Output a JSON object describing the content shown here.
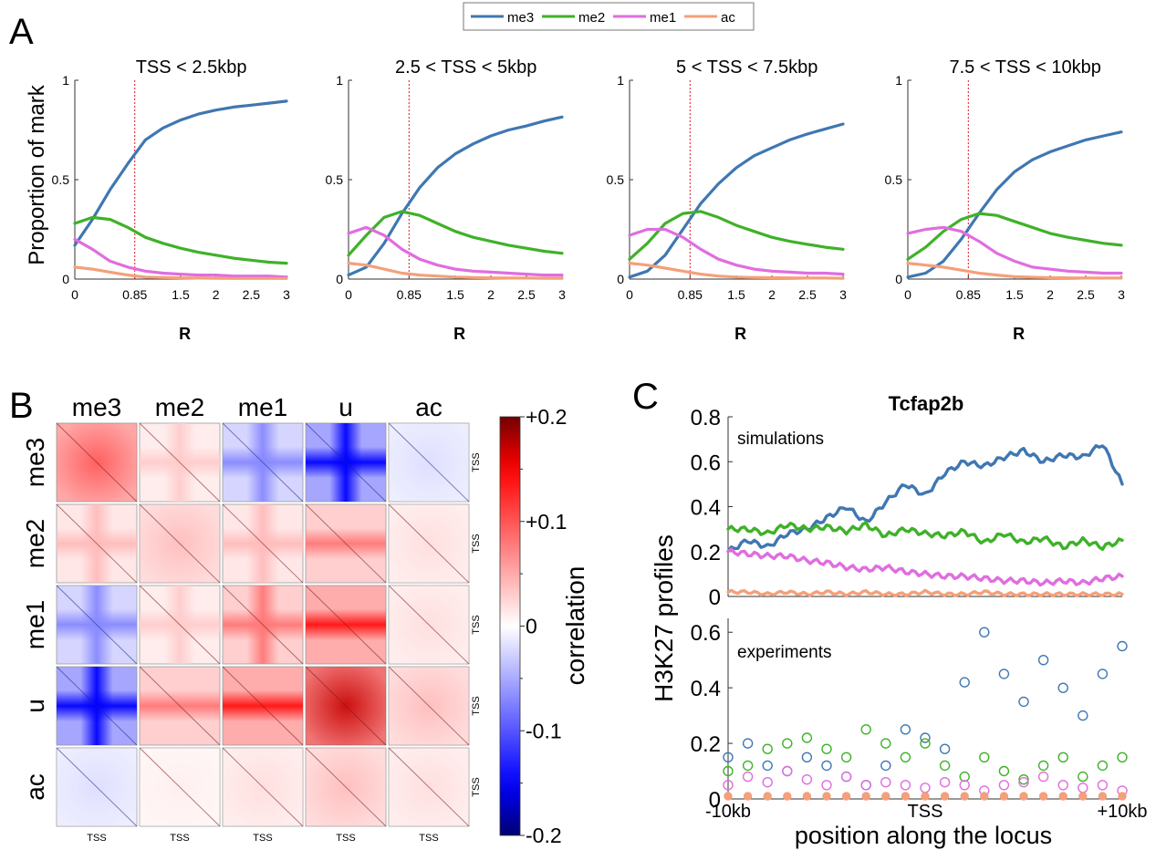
{
  "panels": {
    "a": {
      "label": "A",
      "ylabel": "Proportion of mark",
      "xlabel": "R"
    },
    "b": {
      "label": "B"
    },
    "c": {
      "label": "C",
      "title": "Tcfap2b",
      "ylabel": "H3K27 profiles",
      "xlabel": "position along the locus"
    }
  },
  "legend": [
    {
      "name": "me3",
      "color": "#3f77b2"
    },
    {
      "name": "me2",
      "color": "#3fb129"
    },
    {
      "name": "me1",
      "color": "#e06de0"
    },
    {
      "name": "ac",
      "color": "#f4a07a"
    }
  ],
  "chart_data": [
    {
      "type": "line",
      "title": "TSS < 2.5kbp",
      "xlabel": "R",
      "ylabel": "Proportion of mark",
      "xlim": [
        0,
        3
      ],
      "ylim": [
        0,
        1
      ],
      "xticks": [
        {
          "v": 0,
          "label": "0"
        },
        {
          "v": 0.85,
          "label": "0.85"
        },
        {
          "v": 1.5,
          "label": "1.5"
        },
        {
          "v": 2,
          "label": "2"
        },
        {
          "v": 2.5,
          "label": "2.5"
        },
        {
          "v": 3,
          "label": "3"
        }
      ],
      "yticks": [
        {
          "v": 0,
          "label": "0"
        },
        {
          "v": 0.5,
          "label": "0.5"
        },
        {
          "v": 1,
          "label": "1"
        }
      ],
      "vline": 0.85,
      "x": [
        0,
        0.25,
        0.5,
        0.75,
        1,
        1.25,
        1.5,
        1.75,
        2,
        2.25,
        2.5,
        2.75,
        3
      ],
      "series": [
        {
          "name": "me3",
          "color": "#3f77b2",
          "values": [
            0.17,
            0.3,
            0.45,
            0.58,
            0.7,
            0.76,
            0.8,
            0.83,
            0.85,
            0.865,
            0.875,
            0.885,
            0.895
          ]
        },
        {
          "name": "me2",
          "color": "#3fb129",
          "values": [
            0.28,
            0.31,
            0.3,
            0.26,
            0.21,
            0.18,
            0.155,
            0.135,
            0.12,
            0.105,
            0.095,
            0.085,
            0.08
          ]
        },
        {
          "name": "me1",
          "color": "#e06de0",
          "values": [
            0.2,
            0.15,
            0.09,
            0.06,
            0.04,
            0.03,
            0.025,
            0.02,
            0.02,
            0.015,
            0.015,
            0.015,
            0.01
          ]
        },
        {
          "name": "ac",
          "color": "#f4a07a",
          "values": [
            0.06,
            0.05,
            0.035,
            0.02,
            0.01,
            0.008,
            0.006,
            0.005,
            0.004,
            0.003,
            0.003,
            0.003,
            0.003
          ]
        }
      ]
    },
    {
      "type": "line",
      "title": "2.5 < TSS < 5kbp",
      "xlabel": "R",
      "ylabel": "",
      "xlim": [
        0,
        3
      ],
      "ylim": [
        0,
        1
      ],
      "xticks": [
        {
          "v": 0,
          "label": "0"
        },
        {
          "v": 0.85,
          "label": "0.85"
        },
        {
          "v": 1.5,
          "label": "1.5"
        },
        {
          "v": 2,
          "label": "2"
        },
        {
          "v": 2.5,
          "label": "2.5"
        },
        {
          "v": 3,
          "label": "3"
        }
      ],
      "yticks": [
        {
          "v": 0,
          "label": "0"
        },
        {
          "v": 0.5,
          "label": "0.5"
        },
        {
          "v": 1,
          "label": "1"
        }
      ],
      "vline": 0.85,
      "x": [
        0,
        0.25,
        0.5,
        0.75,
        1,
        1.25,
        1.5,
        1.75,
        2,
        2.25,
        2.5,
        2.75,
        3
      ],
      "series": [
        {
          "name": "me3",
          "color": "#3f77b2",
          "values": [
            0.02,
            0.06,
            0.18,
            0.33,
            0.46,
            0.56,
            0.63,
            0.68,
            0.72,
            0.75,
            0.77,
            0.795,
            0.815
          ]
        },
        {
          "name": "me2",
          "color": "#3fb129",
          "values": [
            0.12,
            0.22,
            0.31,
            0.34,
            0.32,
            0.28,
            0.24,
            0.21,
            0.19,
            0.17,
            0.155,
            0.14,
            0.13
          ]
        },
        {
          "name": "me1",
          "color": "#e06de0",
          "values": [
            0.23,
            0.26,
            0.22,
            0.15,
            0.1,
            0.07,
            0.05,
            0.04,
            0.035,
            0.03,
            0.025,
            0.02,
            0.02
          ]
        },
        {
          "name": "ac",
          "color": "#f4a07a",
          "values": [
            0.08,
            0.07,
            0.05,
            0.03,
            0.02,
            0.015,
            0.01,
            0.008,
            0.006,
            0.005,
            0.005,
            0.004,
            0.004
          ]
        }
      ]
    },
    {
      "type": "line",
      "title": "5 < TSS < 7.5kbp",
      "xlabel": "R",
      "ylabel": "",
      "xlim": [
        0,
        3
      ],
      "ylim": [
        0,
        1
      ],
      "xticks": [
        {
          "v": 0,
          "label": "0"
        },
        {
          "v": 0.85,
          "label": "0.85"
        },
        {
          "v": 1.5,
          "label": "1.5"
        },
        {
          "v": 2,
          "label": "2"
        },
        {
          "v": 2.5,
          "label": "2.5"
        },
        {
          "v": 3,
          "label": "3"
        }
      ],
      "yticks": [
        {
          "v": 0,
          "label": "0"
        },
        {
          "v": 0.5,
          "label": "0.5"
        },
        {
          "v": 1,
          "label": "1"
        }
      ],
      "vline": 0.85,
      "x": [
        0,
        0.25,
        0.5,
        0.75,
        1,
        1.25,
        1.5,
        1.75,
        2,
        2.25,
        2.5,
        2.75,
        3
      ],
      "series": [
        {
          "name": "me3",
          "color": "#3f77b2",
          "values": [
            0.01,
            0.04,
            0.12,
            0.25,
            0.38,
            0.48,
            0.56,
            0.62,
            0.66,
            0.7,
            0.73,
            0.755,
            0.78
          ]
        },
        {
          "name": "me2",
          "color": "#3fb129",
          "values": [
            0.1,
            0.18,
            0.28,
            0.33,
            0.34,
            0.31,
            0.27,
            0.24,
            0.21,
            0.19,
            0.175,
            0.16,
            0.15
          ]
        },
        {
          "name": "me1",
          "color": "#e06de0",
          "values": [
            0.22,
            0.25,
            0.25,
            0.21,
            0.15,
            0.1,
            0.07,
            0.05,
            0.04,
            0.035,
            0.03,
            0.03,
            0.025
          ]
        },
        {
          "name": "ac",
          "color": "#f4a07a",
          "values": [
            0.08,
            0.07,
            0.055,
            0.04,
            0.025,
            0.015,
            0.01,
            0.008,
            0.007,
            0.006,
            0.005,
            0.005,
            0.004
          ]
        }
      ]
    },
    {
      "type": "line",
      "title": "7.5 < TSS < 10kbp",
      "xlabel": "R",
      "ylabel": "",
      "xlim": [
        0,
        3
      ],
      "ylim": [
        0,
        1
      ],
      "xticks": [
        {
          "v": 0,
          "label": "0"
        },
        {
          "v": 0.85,
          "label": "0.85"
        },
        {
          "v": 1.5,
          "label": "1.5"
        },
        {
          "v": 2,
          "label": "2"
        },
        {
          "v": 2.5,
          "label": "2.5"
        },
        {
          "v": 3,
          "label": "3"
        }
      ],
      "yticks": [
        {
          "v": 0,
          "label": "0"
        },
        {
          "v": 0.5,
          "label": "0.5"
        },
        {
          "v": 1,
          "label": "1"
        }
      ],
      "vline": 0.85,
      "x": [
        0,
        0.25,
        0.5,
        0.75,
        1,
        1.25,
        1.5,
        1.75,
        2,
        2.25,
        2.5,
        2.75,
        3
      ],
      "series": [
        {
          "name": "me3",
          "color": "#3f77b2",
          "values": [
            0.01,
            0.03,
            0.09,
            0.2,
            0.33,
            0.45,
            0.54,
            0.6,
            0.64,
            0.67,
            0.7,
            0.72,
            0.74
          ]
        },
        {
          "name": "me2",
          "color": "#3fb129",
          "values": [
            0.1,
            0.16,
            0.24,
            0.3,
            0.33,
            0.32,
            0.29,
            0.26,
            0.23,
            0.21,
            0.195,
            0.18,
            0.17
          ]
        },
        {
          "name": "me1",
          "color": "#e06de0",
          "values": [
            0.23,
            0.25,
            0.26,
            0.24,
            0.19,
            0.13,
            0.09,
            0.06,
            0.05,
            0.04,
            0.035,
            0.03,
            0.03
          ]
        },
        {
          "name": "ac",
          "color": "#f4a07a",
          "values": [
            0.08,
            0.07,
            0.06,
            0.045,
            0.03,
            0.02,
            0.012,
            0.009,
            0.007,
            0.006,
            0.005,
            0.005,
            0.005
          ]
        }
      ]
    },
    {
      "type": "heatmap",
      "title": "",
      "rows": [
        "me3",
        "me2",
        "me1",
        "u",
        "ac"
      ],
      "columns": [
        "me3",
        "me2",
        "me1",
        "u",
        "ac"
      ],
      "cell_xlabel": "TSS",
      "cell_ylabel": "TSS",
      "colorbar": {
        "label": "correlation",
        "min": -0.2,
        "max": 0.2,
        "ticks": [
          {
            "v": 0.2,
            "label": "+0.2"
          },
          {
            "v": 0.1,
            "label": "+0.1"
          },
          {
            "v": 0,
            "label": "0"
          },
          {
            "v": -0.1,
            "label": "-0.1"
          },
          {
            "v": -0.2,
            "label": "-0.2"
          }
        ]
      },
      "cells": [
        [
          {
            "pattern": "diag",
            "value": 0.1
          },
          {
            "pattern": "cross",
            "value": 0.03
          },
          {
            "pattern": "cross",
            "value": -0.07
          },
          {
            "pattern": "cross",
            "value": -0.15
          },
          {
            "pattern": "diag",
            "value": -0.02
          }
        ],
        [
          {
            "pattern": "cross",
            "value": 0.04
          },
          {
            "pattern": "diag",
            "value": 0.04
          },
          {
            "pattern": "cross",
            "value": 0.04
          },
          {
            "pattern": "band",
            "value": 0.08
          },
          {
            "pattern": "diag",
            "value": 0.02
          }
        ],
        [
          {
            "pattern": "cross",
            "value": -0.07
          },
          {
            "pattern": "cross",
            "value": 0.03
          },
          {
            "pattern": "cross",
            "value": 0.08
          },
          {
            "pattern": "band",
            "value": 0.14
          },
          {
            "pattern": "diag",
            "value": 0.02
          }
        ],
        [
          {
            "pattern": "cross",
            "value": -0.15
          },
          {
            "pattern": "band",
            "value": 0.08
          },
          {
            "pattern": "band",
            "value": 0.14
          },
          {
            "pattern": "diag",
            "value": 0.17
          },
          {
            "pattern": "diag",
            "value": 0.04
          }
        ],
        [
          {
            "pattern": "diag",
            "value": -0.02
          },
          {
            "pattern": "diag",
            "value": 0.01
          },
          {
            "pattern": "diag",
            "value": 0.02
          },
          {
            "pattern": "diag",
            "value": 0.04
          },
          {
            "pattern": "diag",
            "value": 0.02
          }
        ]
      ]
    },
    {
      "type": "line",
      "title": "Tcfap2b",
      "subtitle": "simulations",
      "xlabel": "",
      "ylabel": "H3K27 profiles",
      "xlim": [
        -10,
        10
      ],
      "ylim": [
        0,
        0.8
      ],
      "yticks": [
        {
          "v": 0,
          "label": "0"
        },
        {
          "v": 0.2,
          "label": "0.2"
        },
        {
          "v": 0.4,
          "label": "0.4"
        },
        {
          "v": 0.6,
          "label": "0.6"
        },
        {
          "v": 0.8,
          "label": "0.8"
        }
      ],
      "x": [
        -10,
        -9,
        -8,
        -7,
        -6,
        -5,
        -4,
        -3,
        -2,
        -1,
        0,
        1,
        2,
        3,
        4,
        5,
        6,
        7,
        8,
        9,
        10
      ],
      "series": [
        {
          "name": "me3",
          "color": "#3f77b2",
          "values": [
            0.2,
            0.25,
            0.22,
            0.28,
            0.3,
            0.35,
            0.4,
            0.33,
            0.42,
            0.5,
            0.45,
            0.55,
            0.6,
            0.58,
            0.62,
            0.65,
            0.6,
            0.63,
            0.62,
            0.68,
            0.5
          ]
        },
        {
          "name": "me2",
          "color": "#3fb129",
          "values": [
            0.3,
            0.3,
            0.28,
            0.32,
            0.3,
            0.31,
            0.29,
            0.32,
            0.27,
            0.3,
            0.28,
            0.27,
            0.29,
            0.24,
            0.28,
            0.24,
            0.26,
            0.22,
            0.25,
            0.22,
            0.25
          ]
        },
        {
          "name": "me1",
          "color": "#e06de0",
          "values": [
            0.2,
            0.19,
            0.18,
            0.18,
            0.16,
            0.15,
            0.13,
            0.12,
            0.13,
            0.11,
            0.1,
            0.09,
            0.09,
            0.08,
            0.07,
            0.07,
            0.06,
            0.07,
            0.06,
            0.08,
            0.09
          ]
        },
        {
          "name": "ac",
          "color": "#f4a07a",
          "values": [
            0.02,
            0.02,
            0.01,
            0.02,
            0.01,
            0.02,
            0.01,
            0.02,
            0.01,
            0.01,
            0.02,
            0.01,
            0.01,
            0.02,
            0.01,
            0.01,
            0.01,
            0.01,
            0.01,
            0.01,
            0.01
          ]
        }
      ]
    },
    {
      "type": "scatter",
      "title": "",
      "subtitle": "experiments",
      "xlabel": "position along the locus",
      "ylabel": "H3K27 profiles",
      "xlim": [
        -10,
        10
      ],
      "ylim": [
        0,
        0.65
      ],
      "xticks": [
        {
          "v": -10,
          "label": "-10kb"
        },
        {
          "v": 0,
          "label": "TSS"
        },
        {
          "v": 10,
          "label": "+10kb"
        }
      ],
      "yticks": [
        {
          "v": 0,
          "label": "0"
        },
        {
          "v": 0.2,
          "label": "0.2"
        },
        {
          "v": 0.4,
          "label": "0.4"
        },
        {
          "v": 0.6,
          "label": "0.6"
        }
      ],
      "x": [
        -10,
        -9,
        -8,
        -7,
        -6,
        -5,
        -4,
        -3,
        -2,
        -1,
        0,
        1,
        2,
        3,
        4,
        5,
        6,
        7,
        8,
        9,
        10
      ],
      "series": [
        {
          "name": "me3",
          "color": "#3f77b2",
          "values": [
            0.15,
            0.2,
            0.12,
            0.1,
            0.15,
            0.12,
            0.08,
            0.05,
            0.12,
            0.25,
            0.22,
            0.18,
            0.42,
            0.6,
            0.45,
            0.35,
            0.5,
            0.4,
            0.3,
            0.45,
            0.55
          ]
        },
        {
          "name": "me2",
          "color": "#3fb129",
          "values": [
            0.1,
            0.12,
            0.18,
            0.2,
            0.22,
            0.18,
            0.15,
            0.25,
            0.2,
            0.15,
            0.2,
            0.12,
            0.08,
            0.15,
            0.1,
            0.07,
            0.12,
            0.15,
            0.08,
            0.12,
            0.15
          ]
        },
        {
          "name": "me1",
          "color": "#e06de0",
          "values": [
            0.05,
            0.08,
            0.06,
            0.1,
            0.07,
            0.05,
            0.08,
            0.05,
            0.06,
            0.05,
            0.04,
            0.06,
            0.05,
            0.03,
            0.05,
            0.06,
            0.08,
            0.05,
            0.04,
            0.05,
            0.03
          ]
        },
        {
          "name": "ac",
          "color": "#f4a07a",
          "values": [
            0.01,
            0.01,
            0.01,
            0.01,
            0.01,
            0.01,
            0.01,
            0.01,
            0.01,
            0.01,
            0.01,
            0.01,
            0.01,
            0.01,
            0.01,
            0.01,
            0.01,
            0.01,
            0.01,
            0.01,
            0.01
          ]
        }
      ]
    }
  ]
}
